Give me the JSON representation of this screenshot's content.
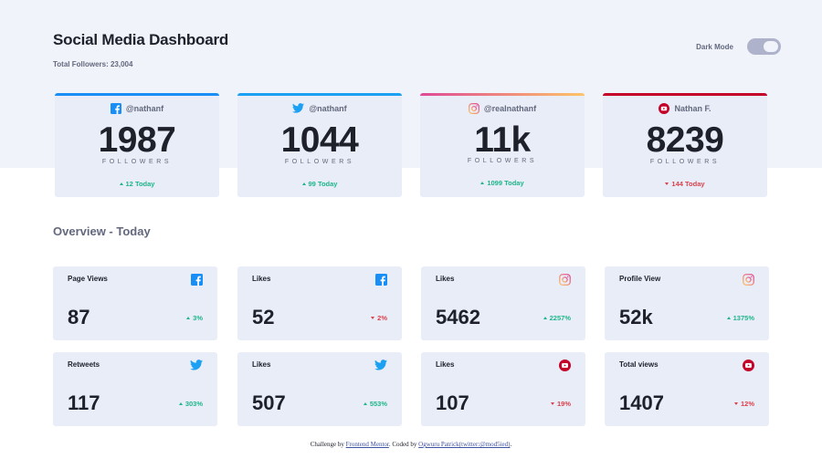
{
  "header": {
    "title": "Social Media Dashboard",
    "total_followers": "Total Followers: 23,004",
    "dark_mode_label": "Dark Mode"
  },
  "colors": {
    "facebook": "#198ff5",
    "twitter": "#1ca0f2",
    "instagram_start": "#df4996",
    "instagram_end": "#fdc468",
    "youtube": "#c4032b",
    "up": "#1eb589",
    "down": "#dc414c"
  },
  "cards": [
    {
      "platform": "facebook",
      "icon": "facebook-icon",
      "handle": "@nathanf",
      "count": "1987",
      "label": "FOLLOWERS",
      "change": "12 Today",
      "direction": "up"
    },
    {
      "platform": "twitter",
      "icon": "twitter-icon",
      "handle": "@nathanf",
      "count": "1044",
      "label": "FOLLOWERS",
      "change": "99 Today",
      "direction": "up"
    },
    {
      "platform": "instagram",
      "icon": "instagram-icon",
      "handle": "@realnathanf",
      "count": "11k",
      "label": "FOLLOWERS",
      "change": "1099 Today",
      "direction": "up"
    },
    {
      "platform": "youtube",
      "icon": "youtube-icon",
      "handle": "Nathan F.",
      "count": "8239",
      "label": "FOLLOWERS",
      "change": "144 Today",
      "direction": "down"
    }
  ],
  "overview": {
    "title": "Overview - Today",
    "items": [
      {
        "title": "Page Views",
        "icon": "facebook-icon",
        "value": "87",
        "percent": "3%",
        "direction": "up"
      },
      {
        "title": "Likes",
        "icon": "facebook-icon",
        "value": "52",
        "percent": "2%",
        "direction": "down"
      },
      {
        "title": "Likes",
        "icon": "instagram-icon",
        "value": "5462",
        "percent": "2257%",
        "direction": "up"
      },
      {
        "title": "Profile View",
        "icon": "instagram-icon",
        "value": "52k",
        "percent": "1375%",
        "direction": "up"
      },
      {
        "title": "Retweets",
        "icon": "twitter-icon",
        "value": "117",
        "percent": "303%",
        "direction": "up"
      },
      {
        "title": "Likes",
        "icon": "twitter-icon",
        "value": "507",
        "percent": "553%",
        "direction": "up"
      },
      {
        "title": "Likes",
        "icon": "youtube-icon",
        "value": "107",
        "percent": "19%",
        "direction": "down"
      },
      {
        "title": "Total views",
        "icon": "youtube-icon",
        "value": "1407",
        "percent": "12%",
        "direction": "down"
      }
    ]
  },
  "footer": {
    "prefix": "Challenge by ",
    "link1": "Frontend Mentor",
    "middle": ". Coded by ",
    "link2": "Ogwuru Patrick(twitter:@mod5ied)",
    "suffix": "."
  }
}
